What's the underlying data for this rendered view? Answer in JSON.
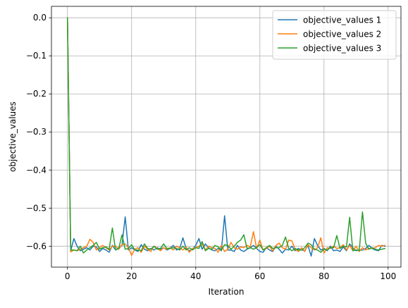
{
  "chart_data": {
    "type": "line",
    "title": "",
    "xlabel": "Iteration",
    "ylabel": "objective_values",
    "xlim": [
      -5,
      104
    ],
    "ylim": [
      -0.655,
      0.03
    ],
    "xticks": [
      0,
      20,
      40,
      60,
      80,
      100
    ],
    "xtick_labels": [
      "0",
      "20",
      "40",
      "60",
      "80",
      "100"
    ],
    "yticks": [
      0.0,
      -0.1,
      -0.2,
      -0.3,
      -0.4,
      -0.5,
      -0.6
    ],
    "ytick_labels": [
      "0.0",
      "−0.1",
      "−0.2",
      "−0.3",
      "−0.4",
      "−0.5",
      "−0.6"
    ],
    "grid": true,
    "legend_position": "top-right",
    "series": [
      {
        "name": "objective_values 1",
        "color": "#1f77b4",
        "values": [
          0.0,
          -0.612,
          -0.58,
          -0.6,
          -0.612,
          -0.608,
          -0.604,
          -0.61,
          -0.6,
          -0.602,
          -0.614,
          -0.606,
          -0.61,
          -0.616,
          -0.598,
          -0.61,
          -0.604,
          -0.598,
          -0.523,
          -0.61,
          -0.604,
          -0.61,
          -0.614,
          -0.596,
          -0.608,
          -0.612,
          -0.606,
          -0.61,
          -0.604,
          -0.608,
          -0.604,
          -0.61,
          -0.606,
          -0.598,
          -0.61,
          -0.606,
          -0.578,
          -0.606,
          -0.612,
          -0.608,
          -0.598,
          -0.58,
          -0.608,
          -0.594,
          -0.604,
          -0.61,
          -0.612,
          -0.606,
          -0.612,
          -0.52,
          -0.61,
          -0.61,
          -0.614,
          -0.598,
          -0.61,
          -0.614,
          -0.608,
          -0.604,
          -0.598,
          -0.606,
          -0.614,
          -0.616,
          -0.604,
          -0.61,
          -0.614,
          -0.6,
          -0.608,
          -0.618,
          -0.608,
          -0.61,
          -0.6,
          -0.612,
          -0.606,
          -0.61,
          -0.612,
          -0.598,
          -0.626,
          -0.58,
          -0.598,
          -0.61,
          -0.606,
          -0.612,
          -0.6,
          -0.612,
          -0.61,
          -0.614,
          -0.602,
          -0.612,
          -0.594,
          -0.604,
          -0.612,
          -0.61,
          -0.61,
          -0.606,
          -0.598,
          -0.606,
          -0.61,
          -0.612,
          -0.598,
          -0.6
        ]
      },
      {
        "name": "objective_values 2",
        "color": "#ff7f0e",
        "values": [
          0.0,
          -0.615,
          -0.61,
          -0.612,
          -0.608,
          -0.604,
          -0.6,
          -0.582,
          -0.59,
          -0.61,
          -0.604,
          -0.598,
          -0.604,
          -0.61,
          -0.6,
          -0.6,
          -0.608,
          -0.596,
          -0.594,
          -0.604,
          -0.624,
          -0.608,
          -0.604,
          -0.616,
          -0.6,
          -0.608,
          -0.614,
          -0.6,
          -0.606,
          -0.612,
          -0.604,
          -0.608,
          -0.604,
          -0.61,
          -0.6,
          -0.604,
          -0.61,
          -0.602,
          -0.616,
          -0.606,
          -0.604,
          -0.6,
          -0.594,
          -0.61,
          -0.6,
          -0.604,
          -0.606,
          -0.616,
          -0.598,
          -0.614,
          -0.608,
          -0.59,
          -0.604,
          -0.608,
          -0.602,
          -0.604,
          -0.598,
          -0.602,
          -0.562,
          -0.606,
          -0.584,
          -0.61,
          -0.606,
          -0.6,
          -0.612,
          -0.598,
          -0.592,
          -0.604,
          -0.608,
          -0.584,
          -0.586,
          -0.608,
          -0.614,
          -0.604,
          -0.614,
          -0.596,
          -0.604,
          -0.61,
          -0.604,
          -0.578,
          -0.618,
          -0.604,
          -0.606,
          -0.6,
          -0.606,
          -0.604,
          -0.596,
          -0.61,
          -0.598,
          -0.612,
          -0.6,
          -0.614,
          -0.604,
          -0.61,
          -0.606,
          -0.606,
          -0.604,
          -0.598,
          -0.6,
          -0.598
        ]
      },
      {
        "name": "objective_values 3",
        "color": "#2ca02c",
        "values": [
          0.0,
          -0.61,
          -0.61,
          -0.612,
          -0.6,
          -0.618,
          -0.61,
          -0.604,
          -0.598,
          -0.59,
          -0.608,
          -0.604,
          -0.602,
          -0.608,
          -0.552,
          -0.61,
          -0.606,
          -0.57,
          -0.608,
          -0.606,
          -0.596,
          -0.61,
          -0.61,
          -0.612,
          -0.594,
          -0.606,
          -0.608,
          -0.6,
          -0.608,
          -0.606,
          -0.594,
          -0.606,
          -0.606,
          -0.604,
          -0.606,
          -0.61,
          -0.6,
          -0.61,
          -0.604,
          -0.61,
          -0.604,
          -0.606,
          -0.588,
          -0.612,
          -0.606,
          -0.608,
          -0.598,
          -0.602,
          -0.61,
          -0.596,
          -0.598,
          -0.608,
          -0.6,
          -0.59,
          -0.584,
          -0.57,
          -0.606,
          -0.604,
          -0.608,
          -0.604,
          -0.596,
          -0.61,
          -0.604,
          -0.598,
          -0.606,
          -0.604,
          -0.604,
          -0.598,
          -0.576,
          -0.606,
          -0.612,
          -0.606,
          -0.61,
          -0.61,
          -0.604,
          -0.592,
          -0.596,
          -0.608,
          -0.61,
          -0.616,
          -0.608,
          -0.61,
          -0.604,
          -0.604,
          -0.572,
          -0.606,
          -0.6,
          -0.602,
          -0.524,
          -0.612,
          -0.61,
          -0.612,
          -0.51,
          -0.592,
          -0.608,
          -0.604,
          -0.608,
          -0.61,
          -0.608,
          -0.606
        ]
      }
    ]
  }
}
